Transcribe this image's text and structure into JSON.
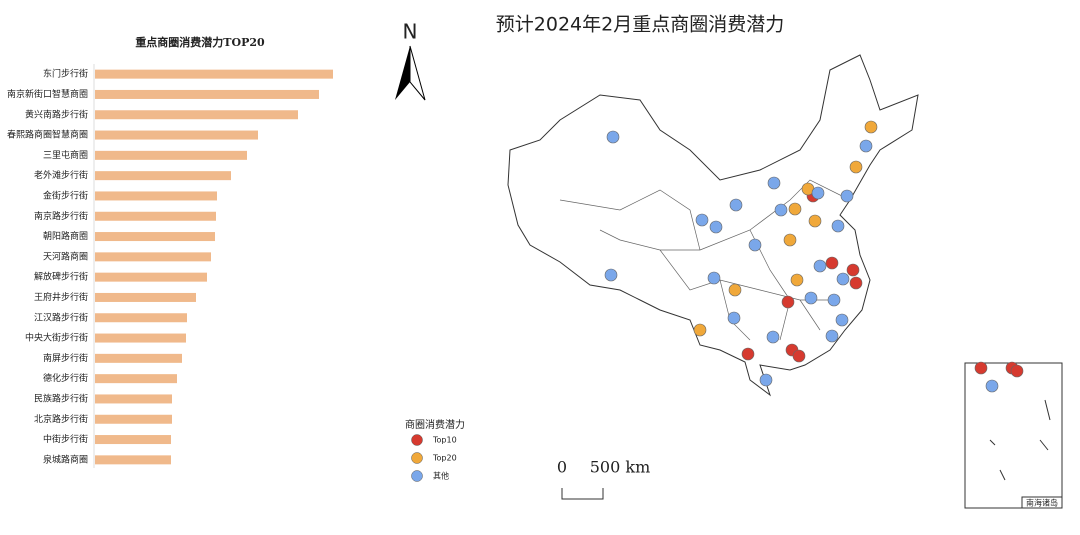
{
  "chart_data": {
    "type": "bar",
    "title": "重点商圈消费潜力TOP20",
    "categories": [
      "东门步行街",
      "南京新街口智慧商圈",
      "黄兴南路步行街",
      "春熙路商圈智慧商圈",
      "三里屯商圈",
      "老外滩步行街",
      "金街步行街",
      "南京路步行街",
      "朝阳路商圈",
      "天河路商圈",
      "解放碑步行街",
      "王府井步行街",
      "江汉路步行街",
      "中央大街步行街",
      "南屏步行街",
      "德化步行街",
      "民族路步行街",
      "北京路步行街",
      "中街步行街",
      "泉城路商圈"
    ],
    "values": [
      238,
      224,
      203,
      163,
      152,
      136,
      122,
      121,
      120,
      116,
      112,
      101,
      92,
      91,
      87,
      82,
      77,
      77,
      76,
      76
    ],
    "color": "#f0b98b",
    "xlim": [
      0,
      250
    ]
  },
  "map": {
    "title": "预计2024年2月重点商圈消费潜力",
    "north": "N",
    "scale_bar": {
      "labels": [
        "0",
        "500 km"
      ]
    },
    "legend": {
      "title": "商圈消费潜力",
      "items": [
        {
          "label": "Top10",
          "color": "#d63a2f"
        },
        {
          "label": "Top20",
          "color": "#f0a83a"
        },
        {
          "label": "其他",
          "color": "#7aa7ea"
        }
      ]
    },
    "inset_label": "南海诸岛"
  }
}
